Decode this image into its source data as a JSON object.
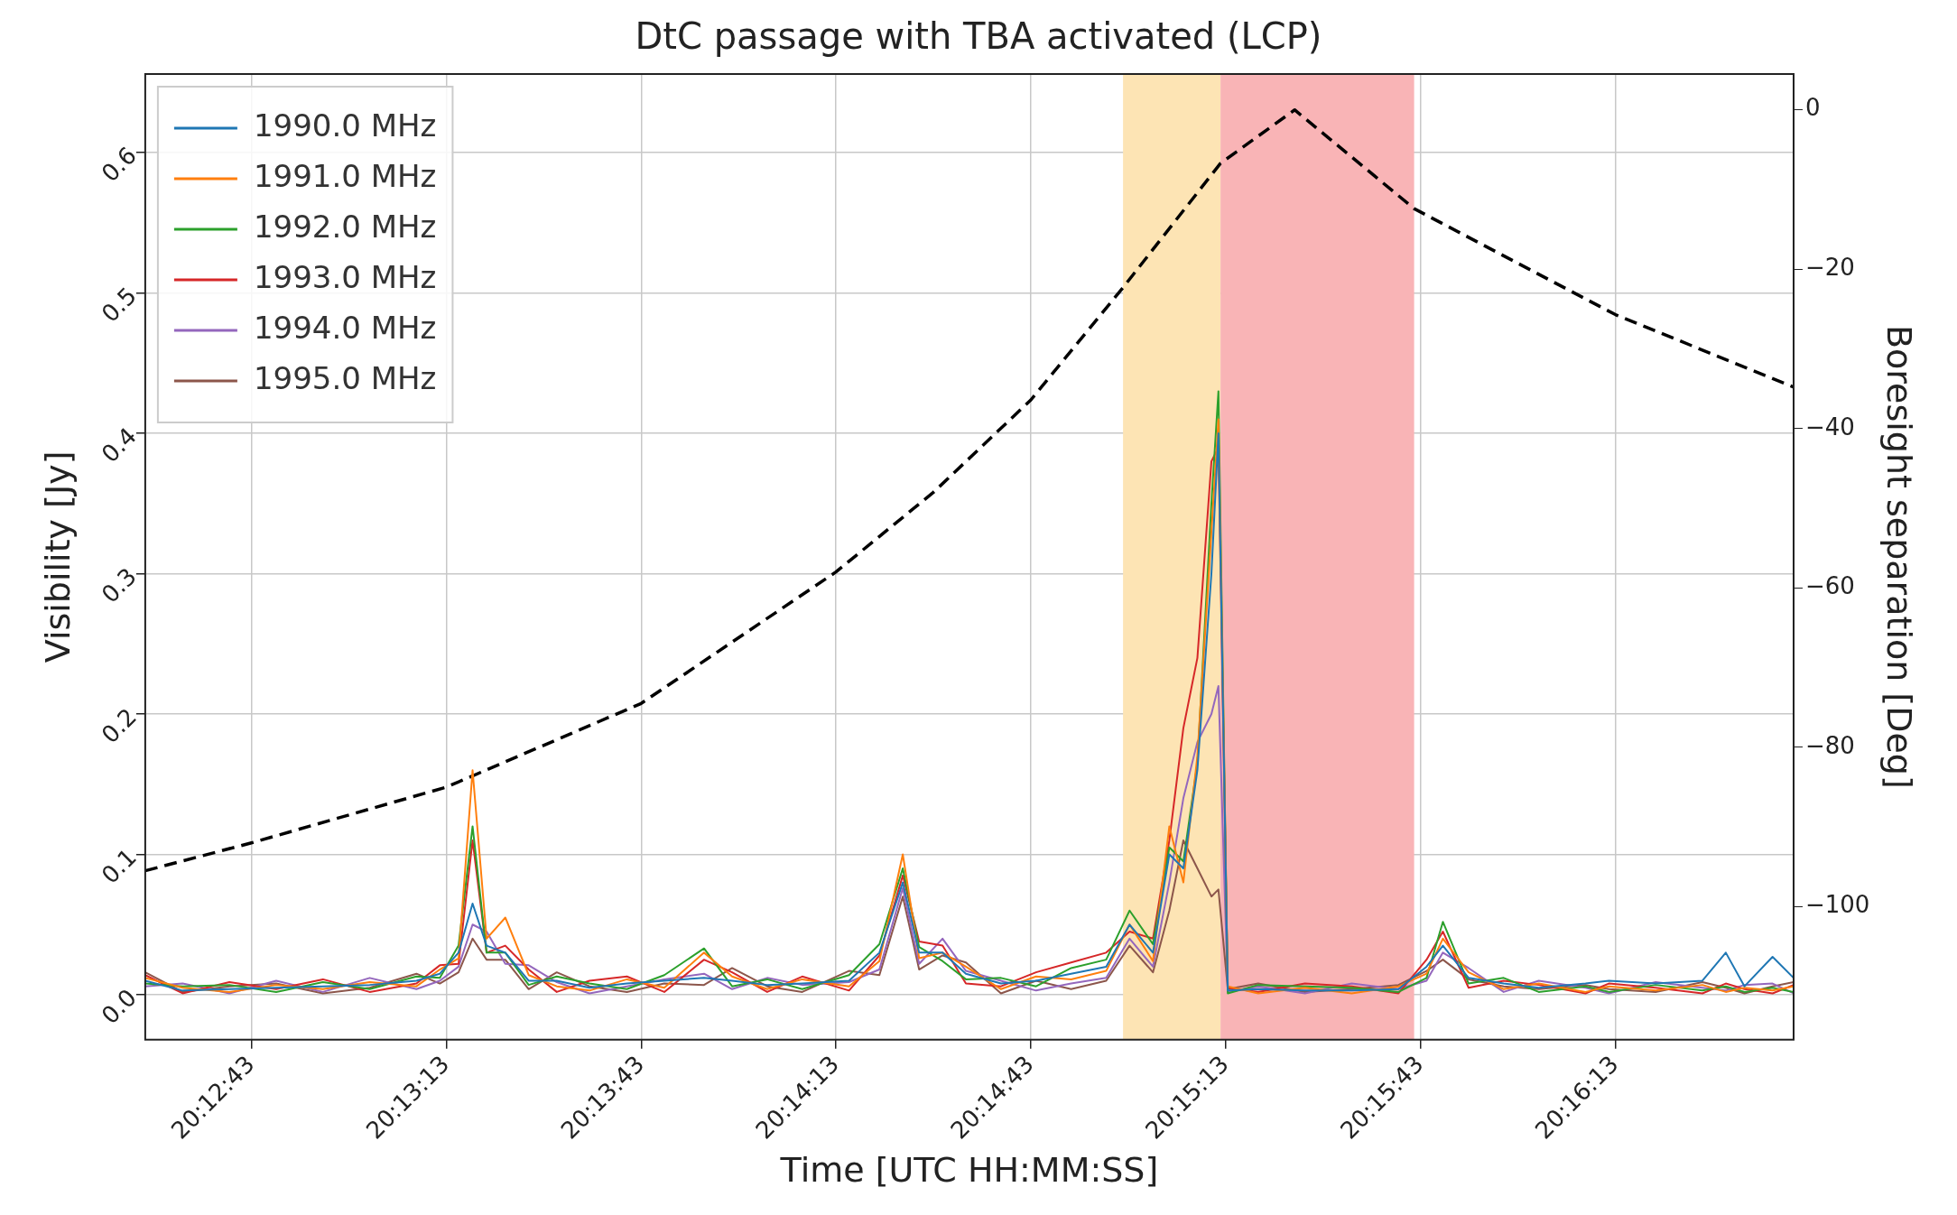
{
  "chart_data": {
    "type": "line",
    "title": "DtC passage with TBA activated (LCP)",
    "xlabel": "Time [UTC HH:MM:SS]",
    "ylabel": "Visibility [Jy]",
    "y2label": "Boresight separation [Deg]",
    "x": [
      20.2074,
      20.209,
      20.211,
      20.213,
      20.215,
      20.217,
      20.219,
      20.22,
      20.2208,
      20.2214,
      20.222,
      20.2228,
      20.2238,
      20.225,
      20.2264,
      20.228,
      20.2296,
      20.2313,
      20.2325,
      20.234,
      20.2355,
      20.2375,
      20.2388,
      20.2398,
      20.2405,
      20.2415,
      20.2425,
      20.244,
      20.2455,
      20.247,
      20.2485,
      20.2495,
      20.2505,
      20.2512,
      20.2518,
      20.2524,
      20.253,
      20.2533,
      20.2537,
      20.255,
      20.257,
      20.259,
      20.261,
      20.2622,
      20.2629,
      20.264,
      20.2655,
      20.267,
      20.269,
      20.27,
      20.272,
      20.274,
      20.275,
      20.2758,
      20.277,
      20.2779
    ],
    "series": [
      {
        "name": "1990.0 MHz",
        "color": "#1f77b4",
        "values": [
          0.01,
          0.003,
          0.004,
          0.005,
          0.006,
          0.007,
          0.01,
          0.015,
          0.03,
          0.065,
          0.035,
          0.03,
          0.01,
          0.01,
          0.005,
          0.008,
          0.01,
          0.012,
          0.01,
          0.007,
          0.008,
          0.01,
          0.03,
          0.08,
          0.03,
          0.03,
          0.015,
          0.008,
          0.01,
          0.015,
          0.02,
          0.05,
          0.03,
          0.1,
          0.09,
          0.16,
          0.3,
          0.4,
          0.003,
          0.004,
          0.003,
          0.003,
          0.004,
          0.02,
          0.035,
          0.012,
          0.008,
          0.005,
          0.008,
          0.01,
          0.008,
          0.01,
          0.03,
          0.006,
          0.027,
          0.012
        ]
      },
      {
        "name": "1991.0 MHz",
        "color": "#ff7f0e",
        "values": [
          0.012,
          0.005,
          0.002,
          0.007,
          0.004,
          0.009,
          0.006,
          0.018,
          0.026,
          0.16,
          0.04,
          0.055,
          0.014,
          0.006,
          0.003,
          0.011,
          0.005,
          0.03,
          0.013,
          0.004,
          0.011,
          0.006,
          0.024,
          0.1,
          0.026,
          0.03,
          0.02,
          0.004,
          0.013,
          0.011,
          0.017,
          0.05,
          0.024,
          0.12,
          0.08,
          0.17,
          0.33,
          0.41,
          0.006,
          0.001,
          0.005,
          0.001,
          0.006,
          0.015,
          0.04,
          0.016,
          0.004,
          0.008,
          0.002,
          0.006,
          0.003,
          0.007,
          0.002,
          0.005,
          0.003,
          0.006
        ]
      },
      {
        "name": "1992.0 MHz",
        "color": "#2ca02c",
        "values": [
          0.008,
          0.006,
          0.007,
          0.002,
          0.009,
          0.004,
          0.013,
          0.012,
          0.035,
          0.12,
          0.03,
          0.03,
          0.007,
          0.013,
          0.008,
          0.004,
          0.014,
          0.033,
          0.006,
          0.011,
          0.004,
          0.014,
          0.036,
          0.09,
          0.034,
          0.024,
          0.011,
          0.012,
          0.006,
          0.019,
          0.025,
          0.06,
          0.036,
          0.105,
          0.095,
          0.165,
          0.35,
          0.43,
          0.001,
          0.007,
          0.006,
          0.005,
          0.002,
          0.012,
          0.052,
          0.008,
          0.012,
          0.002,
          0.006,
          0.002,
          0.007,
          0.003,
          0.006,
          0.002,
          0.005,
          0.002
        ]
      },
      {
        "name": "1993.0 MHz",
        "color": "#d62728",
        "values": [
          0.014,
          0.001,
          0.009,
          0.004,
          0.011,
          0.002,
          0.008,
          0.021,
          0.022,
          0.11,
          0.03,
          0.035,
          0.018,
          0.002,
          0.01,
          0.013,
          0.002,
          0.025,
          0.016,
          0.002,
          0.013,
          0.003,
          0.028,
          0.085,
          0.038,
          0.035,
          0.008,
          0.006,
          0.016,
          0.023,
          0.03,
          0.045,
          0.04,
          0.11,
          0.19,
          0.24,
          0.38,
          0.39,
          0.005,
          0.002,
          0.008,
          0.006,
          0.001,
          0.025,
          0.045,
          0.005,
          0.01,
          0.007,
          0.001,
          0.008,
          0.005,
          0.001,
          0.008,
          0.004,
          0.001,
          0.007
        ]
      },
      {
        "name": "1994.0 MHz",
        "color": "#9467bd",
        "values": [
          0.006,
          0.008,
          0.001,
          0.01,
          0.002,
          0.012,
          0.004,
          0.01,
          0.02,
          0.05,
          0.045,
          0.022,
          0.021,
          0.009,
          0.001,
          0.006,
          0.011,
          0.015,
          0.004,
          0.012,
          0.007,
          0.009,
          0.018,
          0.076,
          0.022,
          0.04,
          0.017,
          0.01,
          0.003,
          0.008,
          0.012,
          0.04,
          0.02,
          0.08,
          0.14,
          0.18,
          0.2,
          0.22,
          0.002,
          0.006,
          0.001,
          0.008,
          0.004,
          0.01,
          0.03,
          0.019,
          0.002,
          0.01,
          0.005,
          0.001,
          0.009,
          0.005,
          0.003,
          0.007,
          0.008,
          0.001
        ]
      },
      {
        "name": "1995.0 MHz",
        "color": "#8c564b",
        "values": [
          0.016,
          0.002,
          0.006,
          0.008,
          0.001,
          0.005,
          0.015,
          0.008,
          0.016,
          0.04,
          0.025,
          0.025,
          0.004,
          0.016,
          0.006,
          0.002,
          0.008,
          0.007,
          0.019,
          0.006,
          0.002,
          0.017,
          0.014,
          0.07,
          0.018,
          0.028,
          0.023,
          0.001,
          0.01,
          0.004,
          0.01,
          0.035,
          0.016,
          0.06,
          0.11,
          0.09,
          0.07,
          0.075,
          0.004,
          0.008,
          0.002,
          0.004,
          0.007,
          0.017,
          0.025,
          0.011,
          0.006,
          0.004,
          0.007,
          0.004,
          0.002,
          0.009,
          0.005,
          0.001,
          0.006,
          0.009
        ]
      },
      {
        "color": "#000000",
        "axis": "y2",
        "line_style": "dashed",
        "x": [
          20.2074,
          20.21194,
          20.22028,
          20.22861,
          20.23694,
          20.24111,
          20.24528,
          20.24922,
          20.25339,
          20.25656,
          20.26167,
          20.27028,
          20.2779
        ],
        "values": [
          -95.5,
          -92,
          -85,
          -74.5,
          -58,
          -48,
          -36.4,
          -22.3,
          -6.7,
          0,
          -12.4,
          -25.7,
          -34.8
        ]
      }
    ],
    "xlim": [
      20.2074,
      20.2779
    ],
    "xticks": [
      {
        "value": 20.211944,
        "label": "20:12:43"
      },
      {
        "value": 20.220278,
        "label": "20:13:13"
      },
      {
        "value": 20.228611,
        "label": "20:13:43"
      },
      {
        "value": 20.236944,
        "label": "20:14:13"
      },
      {
        "value": 20.245278,
        "label": "20:14:43"
      },
      {
        "value": 20.253611,
        "label": "20:15:13"
      },
      {
        "value": 20.261944,
        "label": "20:15:43"
      },
      {
        "value": 20.270278,
        "label": "20:16:13"
      }
    ],
    "ylim": [
      -0.032,
      0.656
    ],
    "yticks": [
      {
        "value": 0,
        "label": "0.0"
      },
      0.1,
      0.2,
      0.3,
      0.4,
      0.5,
      0.6
    ],
    "y2lim": [
      -116.7,
      4.5
    ],
    "y2ticks": [
      {
        "value": -100,
        "label": "−100"
      },
      {
        "value": -80,
        "label": "−80"
      },
      {
        "value": -60,
        "label": "−60"
      },
      {
        "value": -40,
        "label": "−40"
      },
      {
        "value": -20,
        "label": "−20"
      },
      0
    ],
    "bands": [
      {
        "axis": "x",
        "from": 20.24922,
        "to": 20.25339,
        "color": "#fde4b4"
      },
      {
        "axis": "x",
        "from": 20.25339,
        "to": 20.26167,
        "color": "#f9b4b6"
      }
    ],
    "grid": true,
    "legend": "top left",
    "marker": "none",
    "line_style": "solid"
  }
}
